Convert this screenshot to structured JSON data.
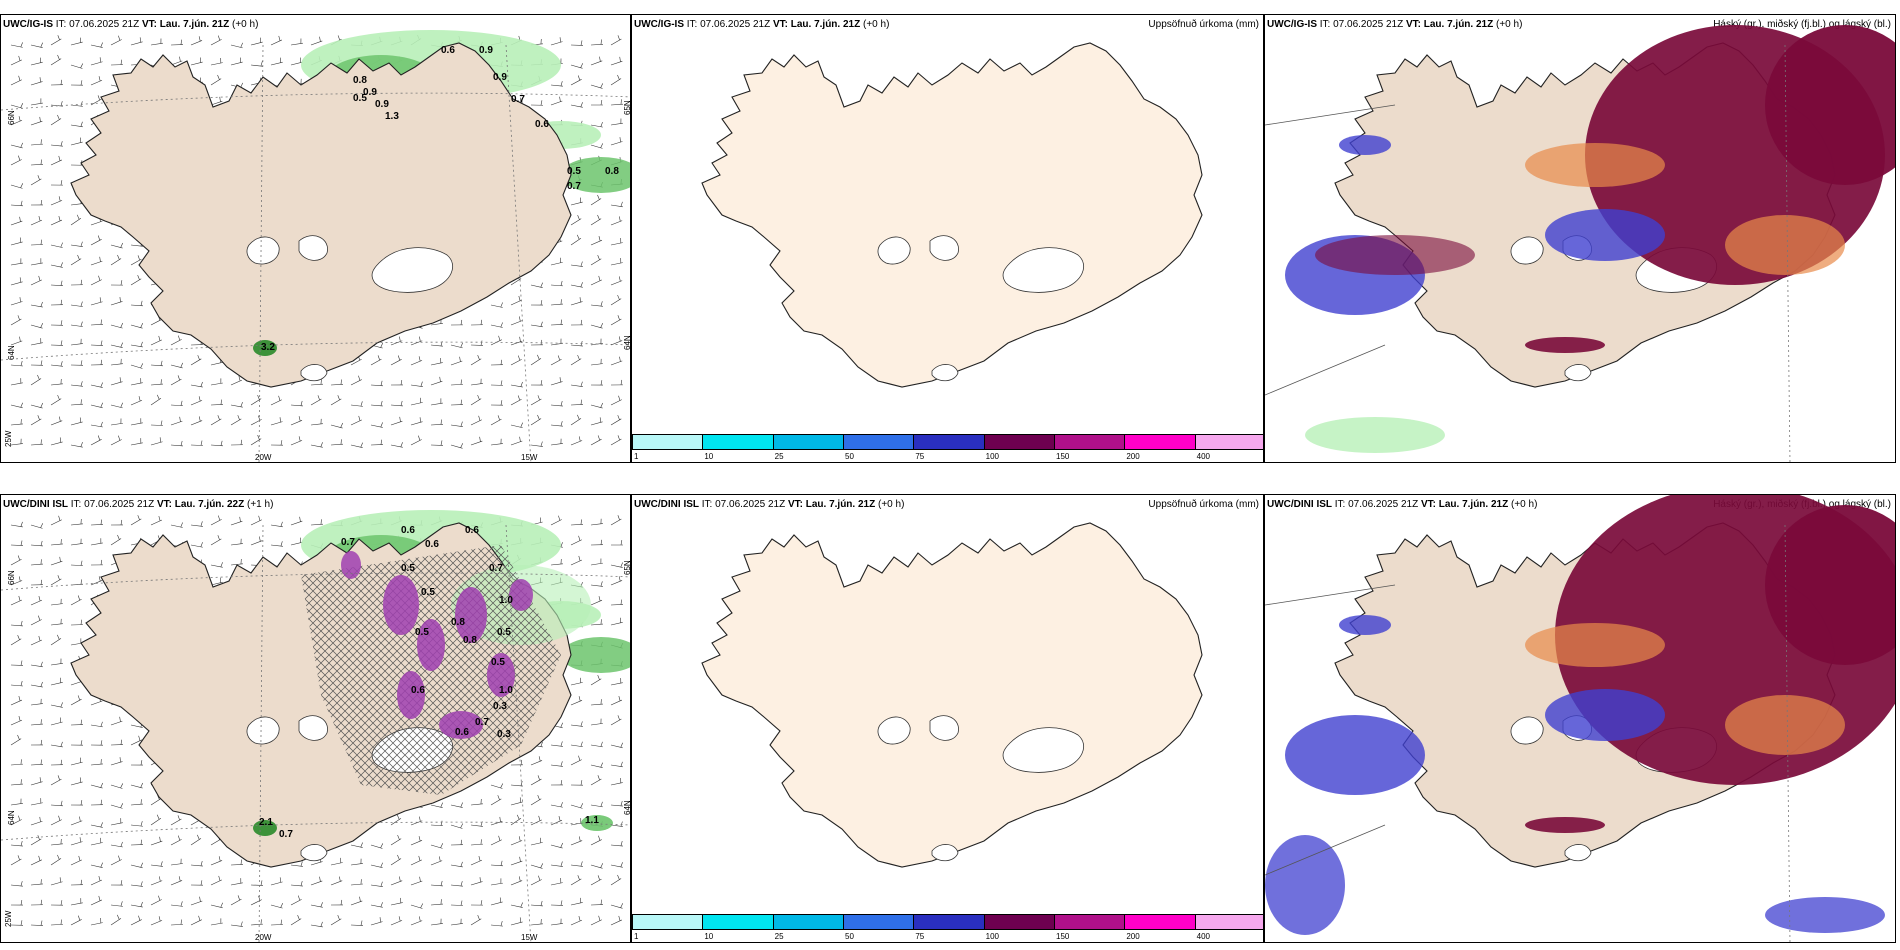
{
  "panels": [
    {
      "model": "UWC/IG-IS",
      "it_label": "IT:",
      "it": "07.06.2025 21Z",
      "vt_label": "VT:",
      "vt": "Lau. 7.jún. 21Z",
      "offset": "(+0 h)",
      "title_right": "",
      "axis": {
        "lat1": "66N",
        "lat2": "64N",
        "lat3": "65N",
        "lat4": "64N",
        "lon1": "20W",
        "lon2": "15W",
        "corner": "25W"
      },
      "values": [
        "0.6",
        "0.9",
        "0.8",
        "0.9",
        "0.9",
        "0.7",
        "0.5",
        "0.9",
        "1.3",
        "0.6",
        "0.5",
        "0.8",
        "0.7",
        "3.2"
      ]
    },
    {
      "model": "UWC/IG-IS",
      "it_label": "IT:",
      "it": "07.06.2025 21Z",
      "vt_label": "VT:",
      "vt": "Lau. 7.jún. 21Z",
      "offset": "(+0 h)",
      "title_right": "Uppsöfnuð úrkoma (mm)"
    },
    {
      "model": "UWC/IG-IS",
      "it_label": "IT:",
      "it": "07.06.2025 21Z",
      "vt_label": "VT:",
      "vt": "Lau. 7.jún. 21Z",
      "offset": "(+0 h)",
      "title_right": "Háský (gr.), miðský (fj.bl.) og lágský (bl.)"
    },
    {
      "model": "UWC/DINI ISL",
      "it_label": "IT:",
      "it": "07.06.2025 21Z",
      "vt_label": "VT:",
      "vt": "Lau. 7.jún. 22Z",
      "offset": "(+1 h)",
      "title_right": "",
      "axis": {
        "lat1": "66N",
        "lat2": "64N",
        "lat3": "65N",
        "lat4": "64N",
        "lon1": "20W",
        "lon2": "15W",
        "corner": "25W"
      },
      "values": [
        "0.7",
        "0.6",
        "0.6",
        "0.6",
        "0.5",
        "0.7",
        "1.0",
        "0.5",
        "0.8",
        "0.5",
        "0.5",
        "0.8",
        "0.6",
        "0.5",
        "0.3",
        "0.6",
        "0.7",
        "0.3",
        "1.0",
        "2.1",
        "0.7",
        "1.1"
      ]
    },
    {
      "model": "UWC/DINI ISL",
      "it_label": "IT:",
      "it": "07.06.2025 21Z",
      "vt_label": "VT:",
      "vt": "Lau. 7.jún. 21Z",
      "offset": "(+0 h)",
      "title_right": "Uppsöfnuð úrkoma (mm)"
    },
    {
      "model": "UWC/DINI ISL",
      "it_label": "IT:",
      "it": "07.06.2025 21Z",
      "vt_label": "VT:",
      "vt": "Lau. 7.jún. 21Z",
      "offset": "(+0 h)",
      "title_right": "Háský (gr.), miðský (fj.bl.) og lágský (bl.)"
    }
  ],
  "colorbar": {
    "labels": [
      "1",
      "10",
      "25",
      "50",
      "75",
      "100",
      "150",
      "200",
      "400"
    ],
    "colors": [
      "#b8f7f7",
      "#00e5f0",
      "#00b8e6",
      "#2f6fe8",
      "#2a2fc0",
      "#6e0050",
      "#b0108a",
      "#ff00c8",
      "#f6a8ee"
    ]
  },
  "colors": {
    "land": "#ecdccc",
    "land_plain": "#fdf0e2",
    "precip_light": "#b8f0b8",
    "precip_mid": "#6cc46c",
    "precip_dark": "#2a8a2a",
    "high_cloud": "#7a0a3a",
    "mid_cloud": "#e88a4a",
    "low_cloud": "#4040d0"
  }
}
